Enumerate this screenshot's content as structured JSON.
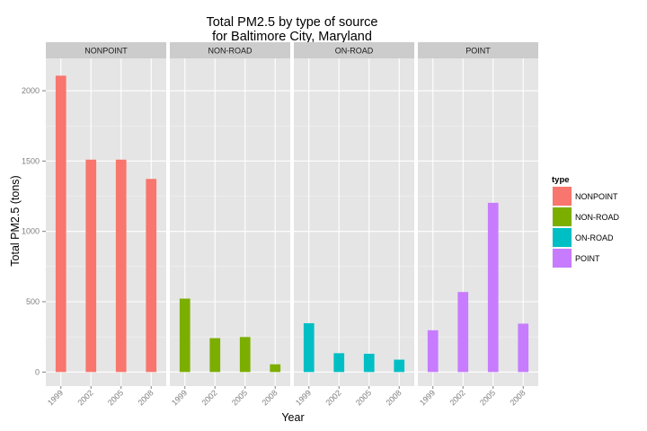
{
  "chart_data": {
    "type": "bar",
    "title_line1": "Total PM2.5 by type of source",
    "title_line2": "for Baltimore City, Maryland",
    "xlabel": "Year",
    "ylabel": "Total PM2.5 (tons)",
    "categories": [
      "1999",
      "2002",
      "2005",
      "2008"
    ],
    "ylim": [
      -100,
      2230
    ],
    "y_ticks": [
      0,
      500,
      1000,
      1500,
      2000
    ],
    "legend_title": "type",
    "legend_position": "right",
    "grid": true,
    "facets": [
      {
        "name": "NONPOINT",
        "color": "#F8766D",
        "values": [
          2107,
          1510,
          1510,
          1373
        ]
      },
      {
        "name": "NON-ROAD",
        "color": "#7CAE00",
        "values": [
          522,
          241,
          249,
          55
        ]
      },
      {
        "name": "ON-ROAD",
        "color": "#00BFC4",
        "values": [
          347,
          134,
          130,
          88
        ]
      },
      {
        "name": "POINT",
        "color": "#C77CFF",
        "values": [
          297,
          569,
          1203,
          344
        ]
      }
    ]
  }
}
